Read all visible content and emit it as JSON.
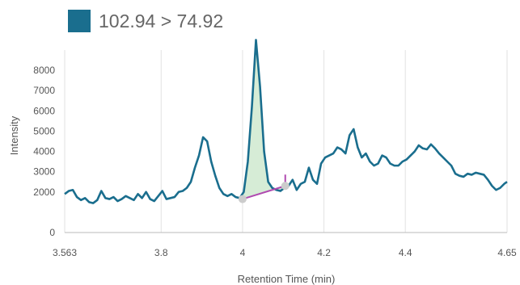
{
  "legend": {
    "label": "102.94 > 74.92",
    "color": "#1a6e8e"
  },
  "chart_data": {
    "type": "line",
    "xlabel": "Retention Time (min)",
    "ylabel": "Intensity",
    "xlim": [
      3.563,
      4.65
    ],
    "ylim": [
      0,
      9000
    ],
    "x_ticks": [
      "3.563",
      "3.8",
      "4",
      "4.2",
      "4.4",
      "4.65"
    ],
    "x_tick_values": [
      3.563,
      3.8,
      4.0,
      4.2,
      4.4,
      4.65
    ],
    "y_ticks": [
      "0",
      "2000",
      "3000",
      "4000",
      "5000",
      "6000",
      "7000",
      "8000"
    ],
    "y_tick_values": [
      0,
      2000,
      3000,
      4000,
      5000,
      6000,
      7000,
      8000
    ],
    "grid": "vertical",
    "colors": {
      "line": "#1a6e8e",
      "peak_fill": "#d6ecd6",
      "baseline": "#b04ab0",
      "baseline_point": "#cccccc"
    },
    "series": [
      {
        "x": [
          3.563,
          3.573,
          3.583,
          3.593,
          3.603,
          3.613,
          3.623,
          3.633,
          3.643,
          3.653,
          3.663,
          3.673,
          3.683,
          3.693,
          3.703,
          3.713,
          3.723,
          3.733,
          3.743,
          3.753,
          3.763,
          3.773,
          3.783,
          3.793,
          3.803,
          3.813,
          3.823,
          3.833,
          3.843,
          3.853,
          3.863,
          3.873,
          3.883,
          3.893,
          3.903,
          3.913,
          3.923,
          3.933,
          3.943,
          3.953,
          3.963,
          3.973,
          3.983,
          3.993,
          4.003,
          4.013,
          4.023,
          4.033,
          4.043,
          4.053,
          4.063,
          4.073,
          4.083,
          4.093,
          4.103,
          4.113,
          4.123,
          4.133,
          4.143,
          4.153,
          4.163,
          4.173,
          4.183,
          4.193,
          4.203,
          4.213,
          4.223,
          4.233,
          4.243,
          4.253,
          4.263,
          4.273,
          4.283,
          4.293,
          4.303,
          4.313,
          4.323,
          4.333,
          4.343,
          4.353,
          4.363,
          4.373,
          4.383,
          4.393,
          4.403,
          4.413,
          4.423,
          4.433,
          4.443,
          4.453,
          4.463,
          4.473,
          4.483,
          4.493,
          4.503,
          4.513,
          4.523,
          4.533,
          4.543,
          4.553,
          4.563,
          4.573,
          4.583,
          4.593,
          4.603,
          4.613,
          4.623,
          4.633,
          4.643,
          4.65
        ],
        "y": [
          1900,
          2050,
          2100,
          1750,
          1600,
          1700,
          1500,
          1450,
          1600,
          2050,
          1700,
          1650,
          1750,
          1550,
          1650,
          1800,
          1700,
          1600,
          1900,
          1700,
          2000,
          1650,
          1550,
          1800,
          2050,
          1650,
          1700,
          1750,
          2000,
          2050,
          2200,
          2500,
          3200,
          3800,
          4700,
          4500,
          3500,
          2800,
          2200,
          1900,
          1800,
          1900,
          1750,
          1700,
          2000,
          3500,
          6200,
          9500,
          7200,
          4000,
          2500,
          2200,
          2100,
          2050,
          2200,
          2300,
          2600,
          2100,
          2400,
          2500,
          3200,
          2600,
          2400,
          3400,
          3700,
          3800,
          3900,
          4200,
          4100,
          3900,
          4800,
          5100,
          4200,
          3700,
          3900,
          3500,
          3300,
          3400,
          3800,
          3700,
          3400,
          3300,
          3300,
          3500,
          3600,
          3800,
          4000,
          4300,
          4150,
          4100,
          4350,
          4150,
          3900,
          3700,
          3500,
          3300,
          2900,
          2800,
          2750,
          2900,
          2850,
          2950,
          2900,
          2850,
          2600,
          2300,
          2100,
          2200,
          2400,
          2500
        ]
      }
    ],
    "peak": {
      "x": [
        4.003,
        4.013,
        4.023,
        4.033,
        4.043,
        4.053,
        4.063,
        4.073,
        4.083,
        4.093,
        4.103
      ],
      "y": [
        2000,
        3500,
        6200,
        9500,
        7200,
        4000,
        2500,
        2200,
        2100,
        2050,
        2200
      ],
      "baseline": [
        [
          4.0,
          1650
        ],
        [
          4.105,
          2300
        ]
      ]
    }
  }
}
